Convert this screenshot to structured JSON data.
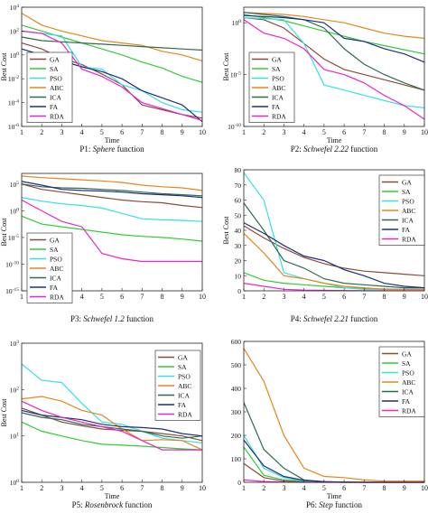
{
  "colors": {
    "GA": "#8a4b3a",
    "SA": "#33cc33",
    "PSO": "#33e0e6",
    "ABC": "#e6861a",
    "ICA": "#2f6b4f",
    "FA": "#1f2f80",
    "RDA": "#ee22cc"
  },
  "legend_order": [
    "GA",
    "SA",
    "PSO",
    "ABC",
    "ICA",
    "FA",
    "RDA"
  ],
  "chart_data": [
    {
      "id": "p1",
      "type": "line",
      "caption_prefix": "P1: ",
      "caption_italic": "Sphere",
      "caption_suffix": " function",
      "xlabel": "Time",
      "ylabel": "Best Cost",
      "xscale": "linear",
      "yscale": "log",
      "xlim": [
        1,
        10
      ],
      "ylim": [
        -6,
        4
      ],
      "xticks": [
        "1",
        "2",
        "3",
        "4",
        "5",
        "6",
        "7",
        "8",
        "9",
        "10"
      ],
      "yticks": [
        {
          "v": 4,
          "base": "10",
          "exp": "4"
        },
        {
          "v": 2,
          "base": "10",
          "exp": "2"
        },
        {
          "v": 0,
          "base": "10",
          "exp": "0"
        },
        {
          "v": -2,
          "base": "10",
          "exp": "-2"
        },
        {
          "v": -4,
          "base": "10",
          "exp": "-4"
        },
        {
          "v": -6,
          "base": "10",
          "exp": "-6"
        }
      ],
      "legend_position": "bottom-left",
      "x": [
        1,
        2,
        3,
        4,
        5,
        6,
        7,
        8,
        9,
        10
      ],
      "series": [
        {
          "name": "GA",
          "values": [
            1.0,
            0.5,
            -0.3,
            -0.8,
            -1.6,
            -2.5,
            -4.2,
            -4.6,
            -5.0,
            -5.3
          ]
        },
        {
          "name": "SA",
          "values": [
            2.5,
            2.0,
            1.5,
            1.0,
            0.5,
            0.0,
            -0.6,
            -1.1,
            -1.8,
            -2.3
          ]
        },
        {
          "name": "PSO",
          "values": [
            2.0,
            1.8,
            1.6,
            -1.0,
            -1.2,
            -2.5,
            -3.0,
            -4.0,
            -4.6,
            -4.8
          ]
        },
        {
          "name": "ABC",
          "values": [
            3.5,
            2.5,
            2.0,
            1.6,
            1.2,
            1.0,
            0.8,
            0.3,
            0.0,
            -0.5
          ]
        },
        {
          "name": "ICA",
          "values": [
            1.5,
            1.2,
            1.1,
            1.0,
            0.9,
            0.8,
            0.7,
            0.6,
            0.5,
            0.4
          ]
        },
        {
          "name": "FA",
          "values": [
            0.5,
            0.0,
            -0.5,
            -1.0,
            -1.4,
            -2.0,
            -3.0,
            -3.6,
            -4.2,
            -5.6
          ]
        },
        {
          "name": "RDA",
          "values": [
            2.0,
            1.8,
            1.0,
            -1.2,
            -1.8,
            -2.7,
            -4.0,
            -4.5,
            -5.0,
            -5.5
          ]
        }
      ]
    },
    {
      "id": "p2",
      "type": "line",
      "caption_prefix": "P2: ",
      "caption_italic": "Schwefel 2.22",
      "caption_suffix": " function",
      "xlabel": "Time",
      "ylabel": "Best Cost",
      "xscale": "linear",
      "yscale": "log",
      "xlim": [
        1,
        10
      ],
      "ylim": [
        -10,
        1.5
      ],
      "xticks": [
        "1",
        "2",
        "3",
        "4",
        "5",
        "6",
        "7",
        "8",
        "9",
        "10"
      ],
      "yticks": [
        {
          "v": 0,
          "base": "10",
          "exp": "0"
        },
        {
          "v": -5,
          "base": "10",
          "exp": "-5"
        },
        {
          "v": -10,
          "base": "10",
          "exp": "-10"
        }
      ],
      "legend_position": "bottom-left",
      "x": [
        1,
        2,
        3,
        4,
        5,
        6,
        7,
        8,
        9,
        10
      ],
      "series": [
        {
          "name": "GA",
          "values": [
            0.5,
            0.3,
            -0.5,
            -2.0,
            -3.5,
            -4.5,
            -5.0,
            -5.5,
            -6.0,
            -6.5
          ]
        },
        {
          "name": "SA",
          "values": [
            0.8,
            0.5,
            0.2,
            -0.3,
            -0.8,
            -1.3,
            -1.8,
            -2.2,
            -2.6,
            -3.0
          ]
        },
        {
          "name": "PSO",
          "values": [
            0.5,
            0.4,
            0.3,
            -2.0,
            -6.0,
            -6.5,
            -7.0,
            -7.5,
            -8.0,
            -8.2
          ]
        },
        {
          "name": "ABC",
          "values": [
            1.0,
            0.9,
            0.8,
            0.6,
            0.3,
            0.0,
            -0.5,
            -1.0,
            -1.3,
            -1.5
          ]
        },
        {
          "name": "ICA",
          "values": [
            1.0,
            0.8,
            0.6,
            0.3,
            -0.5,
            -2.5,
            -4.0,
            -5.0,
            -5.8,
            -6.5
          ]
        },
        {
          "name": "FA",
          "values": [
            0.7,
            0.6,
            0.5,
            0.3,
            0.0,
            -1.5,
            -1.8,
            -2.5,
            -3.0,
            -3.8
          ]
        },
        {
          "name": "RDA",
          "values": [
            0.3,
            -1.0,
            -1.5,
            -2.5,
            -4.5,
            -5.0,
            -5.8,
            -7.0,
            -8.0,
            -9.3
          ]
        }
      ]
    },
    {
      "id": "p3",
      "type": "line",
      "caption_prefix": "P3: ",
      "caption_italic": "Schwefel 1.2",
      "caption_suffix": " function",
      "xlabel": "",
      "ylabel": "Best Cost",
      "xscale": "linear",
      "yscale": "log",
      "xlim": [
        1,
        10
      ],
      "ylim": [
        -15,
        7
      ],
      "xticks": [
        "1",
        "2",
        "3",
        "4",
        "5",
        "6",
        "7",
        "8",
        "9",
        "10"
      ],
      "yticks": [
        {
          "v": 5,
          "base": "10",
          "exp": "5"
        },
        {
          "v": 0,
          "base": "10",
          "exp": "0"
        },
        {
          "v": -5,
          "base": "10",
          "exp": "-5"
        },
        {
          "v": -10,
          "base": "10",
          "exp": "-10"
        },
        {
          "v": -15,
          "base": "10",
          "exp": "-15"
        }
      ],
      "legend_position": "bottom-left",
      "x": [
        1,
        2,
        3,
        4,
        5,
        6,
        7,
        8,
        9,
        10
      ],
      "series": [
        {
          "name": "GA",
          "values": [
            5.0,
            4.0,
            3.5,
            3.0,
            2.5,
            2.0,
            1.7,
            1.5,
            1.0,
            0.6
          ]
        },
        {
          "name": "SA",
          "values": [
            -1.0,
            -2.5,
            -3.0,
            -3.5,
            -4.0,
            -4.5,
            -4.8,
            -5.0,
            -5.3,
            -5.7
          ]
        },
        {
          "name": "PSO",
          "values": [
            2.5,
            1.8,
            1.3,
            1.0,
            0.5,
            -0.5,
            -1.5,
            -1.7,
            -1.8,
            -2.0
          ]
        },
        {
          "name": "ABC",
          "values": [
            6.5,
            6.2,
            6.0,
            5.8,
            5.6,
            5.3,
            4.8,
            4.5,
            4.3,
            3.8
          ]
        },
        {
          "name": "ICA",
          "values": [
            5.0,
            4.5,
            4.3,
            4.2,
            4.0,
            3.8,
            3.5,
            3.2,
            3.0,
            2.8
          ]
        },
        {
          "name": "FA",
          "values": [
            5.5,
            4.8,
            4.0,
            3.8,
            3.7,
            3.5,
            3.2,
            3.0,
            2.8,
            2.5
          ]
        },
        {
          "name": "RDA",
          "values": [
            2.0,
            0.0,
            -2.0,
            -3.0,
            -8.0,
            -9.0,
            -9.5,
            -9.5,
            -9.5,
            -9.5
          ]
        }
      ]
    },
    {
      "id": "p4",
      "type": "line",
      "caption_prefix": "P4: ",
      "caption_italic": "Schwefel 2.21",
      "caption_suffix": " function",
      "xlabel": "",
      "ylabel": "Best Cost",
      "xscale": "linear",
      "yscale": "linear",
      "xlim": [
        1,
        10
      ],
      "ylim": [
        0,
        80
      ],
      "xticks": [
        "1",
        "2",
        "3",
        "4",
        "5",
        "6",
        "7",
        "8",
        "9",
        "10"
      ],
      "yticks": [
        {
          "v": 0,
          "label": "0"
        },
        {
          "v": 10,
          "label": "10"
        },
        {
          "v": 20,
          "label": "20"
        },
        {
          "v": 30,
          "label": "30"
        },
        {
          "v": 40,
          "label": "40"
        },
        {
          "v": 50,
          "label": "50"
        },
        {
          "v": 60,
          "label": "60"
        },
        {
          "v": 70,
          "label": "70"
        },
        {
          "v": 80,
          "label": "80"
        }
      ],
      "legend_position": "top-right",
      "x": [
        1,
        2,
        3,
        4,
        5,
        6,
        7,
        8,
        9,
        10
      ],
      "series": [
        {
          "name": "GA",
          "values": [
            43,
            35,
            28,
            22,
            18,
            15,
            13,
            12,
            11,
            10
          ]
        },
        {
          "name": "SA",
          "values": [
            12,
            7,
            5,
            4,
            3,
            2,
            1.5,
            1.2,
            1,
            1
          ]
        },
        {
          "name": "PSO",
          "values": [
            78,
            60,
            12,
            8,
            5,
            2,
            1,
            1,
            1,
            1
          ]
        },
        {
          "name": "ABC",
          "values": [
            38,
            25,
            10,
            8,
            5,
            3,
            2,
            1,
            1,
            1
          ]
        },
        {
          "name": "ICA",
          "values": [
            58,
            40,
            20,
            15,
            8,
            5,
            4,
            3,
            2,
            2
          ]
        },
        {
          "name": "FA",
          "values": [
            45,
            38,
            30,
            23,
            20,
            14,
            10,
            5,
            3,
            2
          ]
        },
        {
          "name": "RDA",
          "values": [
            5,
            3,
            1,
            0.5,
            0.3,
            0.2,
            0.1,
            0.1,
            0.1,
            0.1
          ]
        }
      ]
    },
    {
      "id": "p5",
      "type": "line",
      "caption_prefix": "P5: ",
      "caption_italic": "Rosenbrock",
      "caption_suffix": " function",
      "xlabel": "Time",
      "ylabel": "Best Cost",
      "xscale": "linear",
      "yscale": "log",
      "xlim": [
        1,
        10
      ],
      "ylim": [
        0,
        3
      ],
      "xticks": [
        "1",
        "2",
        "3",
        "4",
        "5",
        "6",
        "7",
        "8",
        "9",
        "10"
      ],
      "yticks": [
        {
          "v": 3,
          "base": "10",
          "exp": "3"
        },
        {
          "v": 2,
          "base": "10",
          "exp": "2"
        },
        {
          "v": 1,
          "base": "10",
          "exp": "1"
        },
        {
          "v": 0,
          "base": "10",
          "exp": "0"
        }
      ],
      "legend_position": "top-right",
      "x": [
        1,
        2,
        3,
        4,
        5,
        6,
        7,
        8,
        9,
        10
      ],
      "series": [
        {
          "name": "GA",
          "values": [
            1.6,
            1.45,
            1.3,
            1.22,
            1.15,
            1.12,
            1.1,
            1.05,
            1.0,
            0.9
          ]
        },
        {
          "name": "SA",
          "values": [
            1.3,
            1.1,
            1.0,
            0.9,
            0.82,
            0.8,
            0.78,
            0.75,
            0.72,
            0.7
          ]
        },
        {
          "name": "PSO",
          "values": [
            2.55,
            2.2,
            2.15,
            1.7,
            1.3,
            1.25,
            1.1,
            0.95,
            0.9,
            0.85
          ]
        },
        {
          "name": "ABC",
          "values": [
            1.8,
            1.85,
            1.75,
            1.55,
            1.45,
            1.15,
            0.9,
            0.92,
            0.9,
            0.7
          ]
        },
        {
          "name": "ICA",
          "values": [
            1.5,
            1.4,
            1.35,
            1.25,
            1.2,
            1.15,
            1.1,
            1.0,
            0.95,
            1.0
          ]
        },
        {
          "name": "FA",
          "values": [
            1.55,
            1.45,
            1.4,
            1.35,
            1.25,
            1.2,
            1.18,
            1.15,
            1.05,
            1.0
          ]
        },
        {
          "name": "RDA",
          "values": [
            1.75,
            1.55,
            1.4,
            1.3,
            1.2,
            1.1,
            0.9,
            0.7,
            0.7,
            0.7
          ]
        }
      ]
    },
    {
      "id": "p6",
      "type": "line",
      "caption_prefix": "P6: ",
      "caption_italic": "Step",
      "caption_suffix": " function",
      "xlabel": "Time",
      "ylabel": "",
      "xscale": "linear",
      "yscale": "linear",
      "xlim": [
        1,
        10
      ],
      "ylim": [
        0,
        600
      ],
      "xticks": [
        "1",
        "2",
        "3",
        "4",
        "5",
        "6",
        "7",
        "8",
        "9",
        "10"
      ],
      "yticks": [
        {
          "v": 0,
          "label": "0"
        },
        {
          "v": 100,
          "label": "100"
        },
        {
          "v": 200,
          "label": "200"
        },
        {
          "v": 300,
          "label": "300"
        },
        {
          "v": 400,
          "label": "400"
        },
        {
          "v": 500,
          "label": "500"
        },
        {
          "v": 600,
          "label": "600"
        }
      ],
      "legend_position": "top-right",
      "x": [
        1,
        2,
        3,
        4,
        5,
        6,
        7,
        8,
        9,
        10
      ],
      "series": [
        {
          "name": "GA",
          "values": [
            80,
            20,
            5,
            2,
            1,
            0,
            0,
            0,
            0,
            0
          ]
        },
        {
          "name": "SA",
          "values": [
            150,
            30,
            10,
            5,
            2,
            0,
            0,
            0,
            0,
            0
          ]
        },
        {
          "name": "PSO",
          "values": [
            200,
            60,
            20,
            5,
            2,
            1,
            0,
            0,
            0,
            0
          ]
        },
        {
          "name": "ABC",
          "values": [
            570,
            430,
            200,
            60,
            25,
            20,
            10,
            5,
            5,
            5
          ]
        },
        {
          "name": "ICA",
          "values": [
            340,
            140,
            60,
            10,
            2,
            0,
            0,
            0,
            0,
            0
          ]
        },
        {
          "name": "FA",
          "values": [
            180,
            70,
            25,
            8,
            3,
            1,
            0,
            0,
            0,
            0
          ]
        },
        {
          "name": "RDA",
          "values": [
            10,
            3,
            1,
            0,
            0,
            0,
            0,
            0,
            0,
            0
          ]
        }
      ]
    }
  ]
}
